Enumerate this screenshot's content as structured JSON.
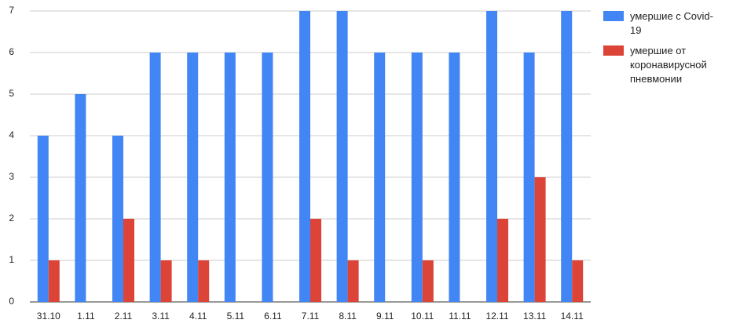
{
  "chart_data": {
    "type": "bar",
    "categories": [
      "31.10",
      "1.11",
      "2.11",
      "3.11",
      "4.11",
      "5.11",
      "6.11",
      "7.11",
      "8.11",
      "9.11",
      "10.11",
      "11.11",
      "12.11",
      "13.11",
      "14.11"
    ],
    "series": [
      {
        "name": "умершие с Covid-19",
        "color": "#4285f4",
        "values": [
          4,
          5,
          4,
          6,
          6,
          6,
          6,
          7,
          7,
          6,
          6,
          6,
          7,
          6,
          7
        ]
      },
      {
        "name": "умершие от коронавирусной пневмонии",
        "color": "#db4437",
        "values": [
          1,
          0,
          2,
          1,
          1,
          0,
          0,
          2,
          1,
          0,
          1,
          0,
          2,
          3,
          1
        ]
      }
    ],
    "ylim": [
      0,
      7
    ],
    "yticks": [
      0,
      1,
      2,
      3,
      4,
      5,
      6,
      7
    ],
    "grid": true,
    "legend": "right"
  }
}
